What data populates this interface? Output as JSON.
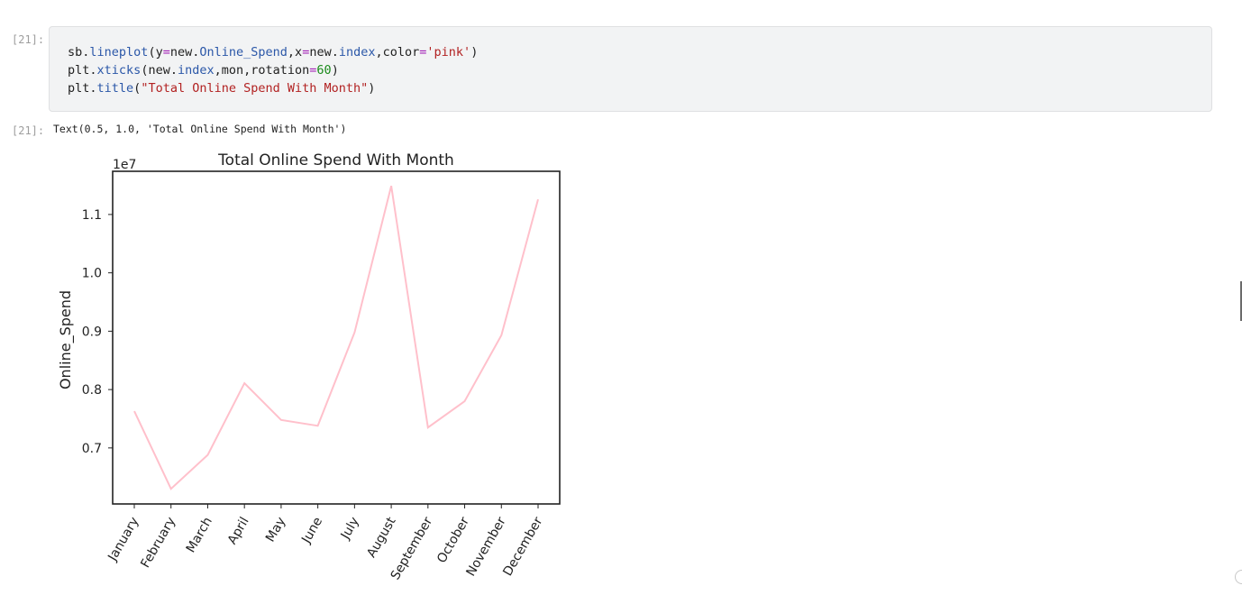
{
  "cells": [
    {
      "input_prompt": "[21]:",
      "output_prompt": "[21]:",
      "code_lines": [
        [
          {
            "t": "sb",
            "c": ""
          },
          {
            "t": ".",
            "c": ""
          },
          {
            "t": "lineplot",
            "c": "attr"
          },
          {
            "t": "(y",
            "c": ""
          },
          {
            "t": "=",
            "c": "op"
          },
          {
            "t": "new",
            "c": ""
          },
          {
            "t": ".",
            "c": ""
          },
          {
            "t": "Online_Spend",
            "c": "attr"
          },
          {
            "t": ",x",
            "c": ""
          },
          {
            "t": "=",
            "c": "op"
          },
          {
            "t": "new",
            "c": ""
          },
          {
            "t": ".",
            "c": ""
          },
          {
            "t": "index",
            "c": "attr"
          },
          {
            "t": ",color",
            "c": ""
          },
          {
            "t": "=",
            "c": "op"
          },
          {
            "t": "'pink'",
            "c": "str"
          },
          {
            "t": ")",
            "c": ""
          }
        ],
        [
          {
            "t": "plt",
            "c": ""
          },
          {
            "t": ".",
            "c": ""
          },
          {
            "t": "xticks",
            "c": "attr"
          },
          {
            "t": "(new",
            "c": ""
          },
          {
            "t": ".",
            "c": ""
          },
          {
            "t": "index",
            "c": "attr"
          },
          {
            "t": ",mon,rotation",
            "c": ""
          },
          {
            "t": "=",
            "c": "op"
          },
          {
            "t": "60",
            "c": "num"
          },
          {
            "t": ")",
            "c": ""
          }
        ],
        [
          {
            "t": "plt",
            "c": ""
          },
          {
            "t": ".",
            "c": ""
          },
          {
            "t": "title",
            "c": "attr"
          },
          {
            "t": "(",
            "c": ""
          },
          {
            "t": "\"Total Online Spend With Month\"",
            "c": "str"
          },
          {
            "t": ")",
            "c": ""
          }
        ]
      ],
      "output_text": "Text(0.5, 1.0, 'Total Online Spend With Month')"
    }
  ],
  "colors": {
    "line": "#ffc0cb",
    "axes": "#222222",
    "text": "#222222"
  },
  "chart_data": {
    "type": "line",
    "title": "Total Online Spend With Month",
    "ylabel": "Online_Spend",
    "xlabel": "",
    "offset_text": "1e7",
    "categories": [
      "January",
      "February",
      "March",
      "April",
      "May",
      "June",
      "July",
      "August",
      "September",
      "October",
      "November",
      "December"
    ],
    "values": [
      7.63,
      6.3,
      6.88,
      8.11,
      7.48,
      7.38,
      8.98,
      11.49,
      7.35,
      7.8,
      8.93,
      11.26
    ],
    "value_scale": 1000000,
    "yticks": [
      0.7,
      0.8,
      0.9,
      1.0,
      1.1
    ],
    "ylim": [
      6.04,
      11.74
    ],
    "grid": false,
    "legend": "none"
  }
}
